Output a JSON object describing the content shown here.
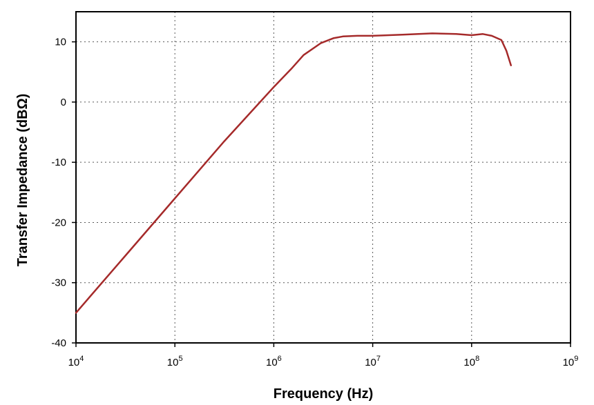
{
  "chart_data": {
    "type": "line",
    "title": "",
    "xlabel": "Frequency (Hz)",
    "ylabel": "Transfer Impedance (dBΩ)",
    "xscale": "log",
    "xlim": [
      10000,
      1000000000
    ],
    "ylim": [
      -40,
      15
    ],
    "grid": true,
    "legend": "none",
    "x_ticks": [
      {
        "base": "10",
        "exp": "4",
        "value": 10000
      },
      {
        "base": "10",
        "exp": "5",
        "value": 100000
      },
      {
        "base": "10",
        "exp": "6",
        "value": 1000000
      },
      {
        "base": "10",
        "exp": "7",
        "value": 10000000
      },
      {
        "base": "10",
        "exp": "8",
        "value": 100000000
      },
      {
        "base": "10",
        "exp": "9",
        "value": 1000000000
      }
    ],
    "y_ticks": [
      {
        "label": "10",
        "value": 10
      },
      {
        "label": "0",
        "value": 0
      },
      {
        "label": "-10",
        "value": -10
      },
      {
        "label": "-20",
        "value": -20
      },
      {
        "label": "-30",
        "value": -30
      },
      {
        "label": "-40",
        "value": -40
      }
    ],
    "series": [
      {
        "color": "#a52a2a",
        "x": [
          10000,
          31623,
          100000,
          316228,
          1000000,
          1500000,
          2000000,
          3000000,
          4000000,
          5000000,
          7000000,
          10000000,
          20000000,
          40000000,
          70000000,
          100000000,
          130000000,
          160000000,
          200000000,
          225000000,
          250000000
        ],
        "y": [
          -35.0,
          -25.5,
          -16.0,
          -6.5,
          2.5,
          5.5,
          7.8,
          9.8,
          10.6,
          10.9,
          11.0,
          11.0,
          11.2,
          11.4,
          11.3,
          11.1,
          11.3,
          11.0,
          10.3,
          8.5,
          6.1
        ]
      }
    ]
  }
}
